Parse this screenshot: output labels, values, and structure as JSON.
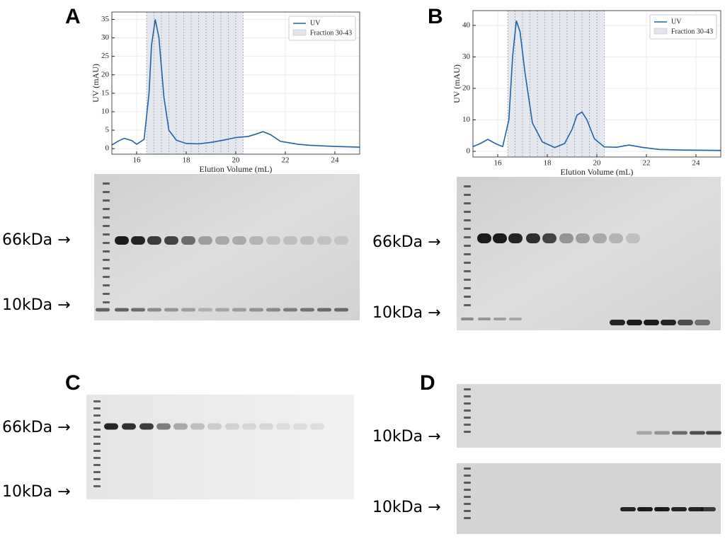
{
  "chart_data": [
    {
      "type": "line",
      "x": [
        15,
        15.3,
        15.5,
        15.8,
        16.0,
        16.3,
        16.5,
        16.6,
        16.75,
        16.9,
        17.1,
        17.3,
        17.6,
        18.0,
        18.5,
        19.0,
        19.5,
        20.0,
        20.5,
        20.8,
        21.1,
        21.4,
        21.8,
        22.5,
        23,
        24,
        25
      ],
      "series": [
        {
          "name": "UV",
          "color": "#1f62a8",
          "values": [
            1.0,
            2.2,
            2.8,
            2.2,
            1.2,
            2.5,
            15,
            28,
            35,
            30,
            14,
            5,
            2.3,
            1.4,
            1.3,
            1.7,
            2.3,
            3.0,
            3.3,
            3.9,
            4.6,
            3.8,
            2.0,
            1.2,
            0.9,
            0.6,
            0.4
          ]
        }
      ],
      "span": {
        "name": "Fraction 30-43",
        "x": [
          16.4,
          20.3
        ],
        "color": "#e3e6ee"
      },
      "fraction_lines": [
        16.4,
        16.7,
        17.0,
        17.3,
        17.6,
        17.9,
        18.2,
        18.5,
        18.8,
        19.1,
        19.4,
        19.7,
        20.0,
        20.3
      ],
      "xlabel": "Elution Volume (mL)",
      "ylabel": "UV (mAU)",
      "xlim": [
        15,
        25
      ],
      "xticks": [
        16,
        18,
        20,
        22,
        24
      ],
      "ylim": [
        -1.5,
        37
      ],
      "yticks": [
        0,
        5,
        10,
        15,
        20,
        25,
        30,
        35
      ],
      "grid": true,
      "legend": "upper right"
    },
    {
      "type": "line",
      "x": [
        15,
        15.3,
        15.6,
        15.9,
        16.2,
        16.45,
        16.6,
        16.75,
        16.9,
        17.1,
        17.4,
        17.8,
        18.3,
        18.7,
        19.0,
        19.2,
        19.4,
        19.6,
        19.9,
        20.3,
        20.8,
        21.3,
        21.8,
        22.5,
        23.5,
        25
      ],
      "series": [
        {
          "name": "UV",
          "color": "#1f62a8",
          "values": [
            1.5,
            2.5,
            3.8,
            2.5,
            1.5,
            10,
            30,
            41.5,
            38,
            25,
            9,
            3,
            1.2,
            2.5,
            7,
            11.5,
            12.5,
            10,
            4,
            1.4,
            1.3,
            2.0,
            1.3,
            0.6,
            0.4,
            0.3
          ]
        }
      ],
      "span": {
        "name": "Fraction 30-43",
        "x": [
          16.4,
          20.3
        ],
        "color": "#e3e6ee"
      },
      "fraction_lines": [
        16.4,
        16.7,
        17.0,
        17.3,
        17.6,
        17.9,
        18.2,
        18.5,
        18.8,
        19.1,
        19.4,
        19.7,
        20.0,
        20.3
      ],
      "xlabel": "Elution Volume (mL)",
      "ylabel": "UV (mAU)",
      "xlim": [
        15,
        25
      ],
      "xticks": [
        16,
        18,
        20,
        22,
        24
      ],
      "ylim": [
        -1.8,
        44.7
      ],
      "yticks": [
        0,
        10,
        20,
        30,
        40
      ],
      "grid": true,
      "legend": "upper right"
    }
  ],
  "panels": [
    {
      "label": "A",
      "markers": [
        "66kDa →",
        "10kDa →"
      ]
    },
    {
      "label": "B",
      "markers": [
        "66kDa →",
        "10kDa →"
      ]
    },
    {
      "label": "C",
      "markers": [
        "66kDa →",
        "10kDa →"
      ]
    },
    {
      "label": "D",
      "markers": [
        "10kDa →",
        "10kDa →"
      ]
    }
  ]
}
